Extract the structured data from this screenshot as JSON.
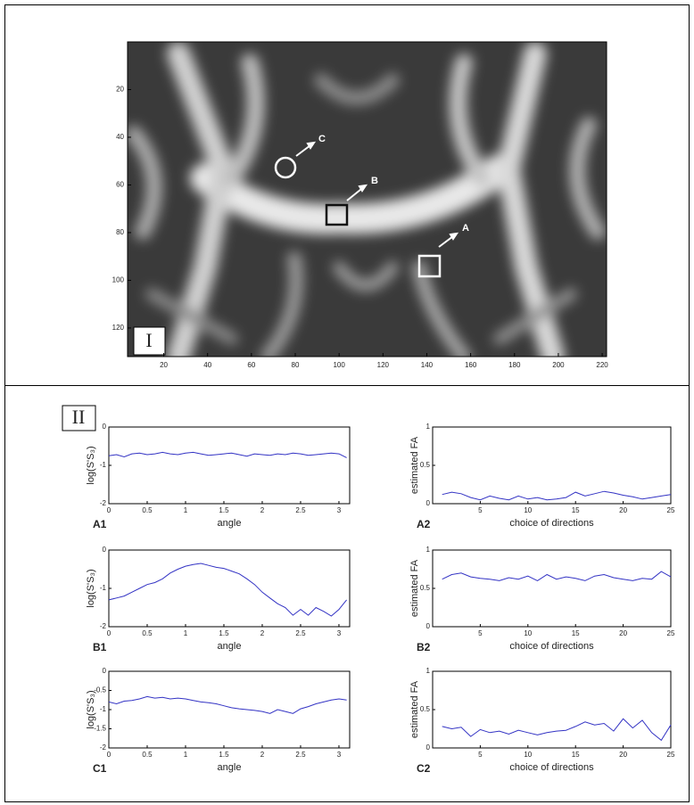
{
  "figure": {
    "panel_labels": [
      "I",
      "II"
    ]
  },
  "image": {
    "annotations": [
      "A",
      "B",
      "C"
    ],
    "xlim": [
      3.5,
      222
    ],
    "ylim": [
      0,
      132
    ],
    "xticks": [
      20,
      40,
      60,
      80,
      100,
      120,
      140,
      160,
      180,
      200,
      220
    ],
    "yticks": [
      20,
      40,
      60,
      80,
      100,
      120
    ]
  },
  "chart_data": [
    {
      "type": "line",
      "panel": "A1",
      "xlabel": "angle",
      "ylabel": "log(S'S₃)",
      "color": "#3333c4",
      "xlim": [
        0,
        3.14
      ],
      "xticks": [
        0,
        0.5,
        1,
        1.5,
        2,
        2.5,
        3
      ],
      "ylim": [
        -2,
        0
      ],
      "yticks": [
        -2,
        -1,
        0
      ],
      "x": [
        0,
        0.1,
        0.2,
        0.3,
        0.4,
        0.5,
        0.6,
        0.7,
        0.8,
        0.9,
        1,
        1.1,
        1.2,
        1.3,
        1.4,
        1.5,
        1.6,
        1.7,
        1.8,
        1.9,
        2,
        2.1,
        2.2,
        2.3,
        2.4,
        2.5,
        2.6,
        2.7,
        2.8,
        2.9,
        3,
        3.1
      ],
      "values": [
        -0.75,
        -0.72,
        -0.78,
        -0.7,
        -0.68,
        -0.72,
        -0.7,
        -0.66,
        -0.7,
        -0.72,
        -0.68,
        -0.66,
        -0.7,
        -0.74,
        -0.72,
        -0.7,
        -0.68,
        -0.72,
        -0.76,
        -0.7,
        -0.72,
        -0.74,
        -0.7,
        -0.72,
        -0.68,
        -0.7,
        -0.74,
        -0.72,
        -0.7,
        -0.68,
        -0.7,
        -0.8
      ]
    },
    {
      "type": "line",
      "panel": "A2",
      "xlabel": "choice of directions",
      "ylabel": "estimated FA",
      "color": "#3333c4",
      "xlim": [
        0,
        25
      ],
      "xticks": [
        5,
        10,
        15,
        20,
        25
      ],
      "ylim": [
        0,
        1
      ],
      "yticks": [
        0,
        0.5,
        1
      ],
      "x": [
        1,
        2,
        3,
        4,
        5,
        6,
        7,
        8,
        9,
        10,
        11,
        12,
        13,
        14,
        15,
        16,
        17,
        18,
        19,
        20,
        21,
        22,
        23,
        24,
        25
      ],
      "values": [
        0.12,
        0.15,
        0.13,
        0.08,
        0.05,
        0.1,
        0.07,
        0.05,
        0.1,
        0.06,
        0.08,
        0.05,
        0.06,
        0.08,
        0.15,
        0.1,
        0.13,
        0.16,
        0.14,
        0.11,
        0.09,
        0.06,
        0.08,
        0.1,
        0.12
      ]
    },
    {
      "type": "line",
      "panel": "B1",
      "xlabel": "angle",
      "ylabel": "log(S'S₃)",
      "color": "#3333c4",
      "xlim": [
        0,
        3.14
      ],
      "xticks": [
        0,
        0.5,
        1,
        1.5,
        2,
        2.5,
        3
      ],
      "ylim": [
        -2,
        0
      ],
      "yticks": [
        -2,
        -1,
        0
      ],
      "x": [
        0,
        0.1,
        0.2,
        0.3,
        0.4,
        0.5,
        0.6,
        0.7,
        0.8,
        0.9,
        1,
        1.1,
        1.2,
        1.3,
        1.4,
        1.5,
        1.6,
        1.7,
        1.8,
        1.9,
        2,
        2.1,
        2.2,
        2.3,
        2.4,
        2.5,
        2.6,
        2.7,
        2.8,
        2.9,
        3,
        3.1
      ],
      "values": [
        -1.3,
        -1.25,
        -1.2,
        -1.1,
        -1.0,
        -0.9,
        -0.85,
        -0.75,
        -0.6,
        -0.5,
        -0.42,
        -0.38,
        -0.35,
        -0.4,
        -0.45,
        -0.48,
        -0.55,
        -0.62,
        -0.75,
        -0.9,
        -1.1,
        -1.25,
        -1.4,
        -1.5,
        -1.7,
        -1.55,
        -1.7,
        -1.5,
        -1.6,
        -1.72,
        -1.55,
        -1.3
      ]
    },
    {
      "type": "line",
      "panel": "B2",
      "xlabel": "choice of directions",
      "ylabel": "estimated FA",
      "color": "#3333c4",
      "xlim": [
        0,
        25
      ],
      "xticks": [
        5,
        10,
        15,
        20,
        25
      ],
      "ylim": [
        0,
        1
      ],
      "yticks": [
        0,
        0.5,
        1
      ],
      "x": [
        1,
        2,
        3,
        4,
        5,
        6,
        7,
        8,
        9,
        10,
        11,
        12,
        13,
        14,
        15,
        16,
        17,
        18,
        19,
        20,
        21,
        22,
        23,
        24,
        25
      ],
      "values": [
        0.62,
        0.68,
        0.7,
        0.65,
        0.63,
        0.62,
        0.6,
        0.64,
        0.62,
        0.66,
        0.6,
        0.68,
        0.62,
        0.65,
        0.63,
        0.6,
        0.66,
        0.68,
        0.64,
        0.62,
        0.6,
        0.63,
        0.62,
        0.72,
        0.65
      ]
    },
    {
      "type": "line",
      "panel": "C1",
      "xlabel": "angle",
      "ylabel": "log(S'S₃)",
      "color": "#3333c4",
      "xlim": [
        0,
        3.14
      ],
      "xticks": [
        0,
        0.5,
        1,
        1.5,
        2,
        2.5,
        3
      ],
      "ylim": [
        -2,
        0
      ],
      "yticks": [
        -2,
        -1.5,
        -1,
        -0.5,
        0
      ],
      "x": [
        0,
        0.1,
        0.2,
        0.3,
        0.4,
        0.5,
        0.6,
        0.7,
        0.8,
        0.9,
        1,
        1.1,
        1.2,
        1.3,
        1.4,
        1.5,
        1.6,
        1.7,
        1.8,
        1.9,
        2,
        2.1,
        2.2,
        2.3,
        2.4,
        2.5,
        2.6,
        2.7,
        2.8,
        2.9,
        3,
        3.1
      ],
      "values": [
        -0.8,
        -0.85,
        -0.78,
        -0.76,
        -0.72,
        -0.66,
        -0.7,
        -0.68,
        -0.72,
        -0.7,
        -0.72,
        -0.76,
        -0.8,
        -0.82,
        -0.85,
        -0.9,
        -0.95,
        -0.98,
        -1.0,
        -1.02,
        -1.05,
        -1.1,
        -1.0,
        -1.05,
        -1.1,
        -0.98,
        -0.92,
        -0.85,
        -0.8,
        -0.75,
        -0.72,
        -0.75
      ]
    },
    {
      "type": "line",
      "panel": "C2",
      "xlabel": "choice of directions",
      "ylabel": "estimated FA",
      "color": "#3333c4",
      "xlim": [
        0,
        25
      ],
      "xticks": [
        5,
        10,
        15,
        20,
        25
      ],
      "ylim": [
        0,
        1
      ],
      "yticks": [
        0,
        0.5,
        1
      ],
      "x": [
        1,
        2,
        3,
        4,
        5,
        6,
        7,
        8,
        9,
        10,
        11,
        12,
        13,
        14,
        15,
        16,
        17,
        18,
        19,
        20,
        21,
        22,
        23,
        24,
        25
      ],
      "values": [
        0.28,
        0.25,
        0.27,
        0.15,
        0.24,
        0.2,
        0.22,
        0.18,
        0.23,
        0.2,
        0.17,
        0.2,
        0.22,
        0.23,
        0.28,
        0.34,
        0.3,
        0.32,
        0.22,
        0.38,
        0.26,
        0.36,
        0.2,
        0.1,
        0.3
      ]
    }
  ]
}
